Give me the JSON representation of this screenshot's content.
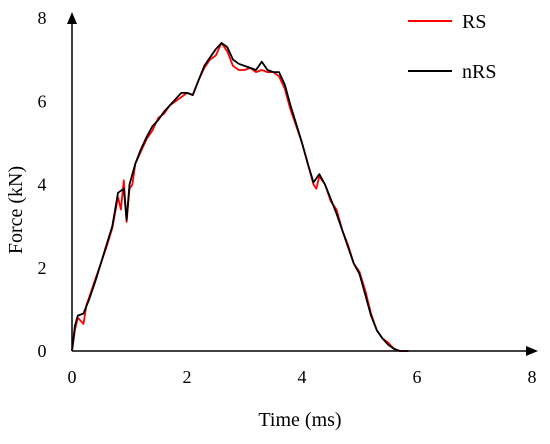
{
  "chart_data": {
    "type": "line",
    "title": "",
    "xlabel": "Time (ms)",
    "ylabel": "Force (kN)",
    "xlim": [
      0,
      8
    ],
    "ylim": [
      0,
      8
    ],
    "x_ticks": [
      "0",
      "2",
      "4",
      "6",
      "8"
    ],
    "y_ticks": [
      "0",
      "2",
      "4",
      "6",
      "8"
    ],
    "grid": false,
    "legend_position": "top-right",
    "series": [
      {
        "name": "RS",
        "color": "#ff0000",
        "x": [
          0,
          0.05,
          0.1,
          0.2,
          0.25,
          0.3,
          0.4,
          0.5,
          0.6,
          0.7,
          0.8,
          0.85,
          0.9,
          0.95,
          1.0,
          1.05,
          1.1,
          1.2,
          1.3,
          1.4,
          1.5,
          1.6,
          1.7,
          1.8,
          1.9,
          2.0,
          2.1,
          2.2,
          2.3,
          2.4,
          2.5,
          2.6,
          2.7,
          2.8,
          2.9,
          3.0,
          3.1,
          3.2,
          3.3,
          3.4,
          3.5,
          3.6,
          3.7,
          3.8,
          3.9,
          4.0,
          4.1,
          4.2,
          4.25,
          4.3,
          4.4,
          4.5,
          4.6,
          4.7,
          4.8,
          4.9,
          5.0,
          5.1,
          5.2,
          5.3,
          5.4,
          5.5,
          5.6,
          5.7,
          5.8,
          5.85
        ],
        "y": [
          0,
          0.5,
          0.8,
          0.65,
          1.1,
          1.3,
          1.7,
          2.1,
          2.5,
          2.95,
          3.7,
          3.4,
          4.1,
          3.1,
          3.9,
          4.0,
          4.5,
          4.8,
          5.1,
          5.3,
          5.6,
          5.7,
          5.9,
          6.0,
          6.1,
          6.2,
          6.15,
          6.5,
          6.8,
          7.0,
          7.1,
          7.4,
          7.2,
          6.85,
          6.75,
          6.75,
          6.8,
          6.7,
          6.75,
          6.7,
          6.7,
          6.6,
          6.3,
          5.8,
          5.4,
          5.0,
          4.5,
          4.0,
          3.9,
          4.2,
          4.0,
          3.6,
          3.4,
          2.9,
          2.55,
          2.1,
          1.9,
          1.45,
          0.9,
          0.5,
          0.3,
          0.2,
          0.05,
          0.0,
          0,
          0
        ]
      },
      {
        "name": "nRS",
        "color": "#000000",
        "x": [
          0,
          0.05,
          0.1,
          0.2,
          0.3,
          0.4,
          0.5,
          0.6,
          0.7,
          0.8,
          0.9,
          0.95,
          1.0,
          1.1,
          1.2,
          1.3,
          1.4,
          1.5,
          1.6,
          1.7,
          1.8,
          1.9,
          2.0,
          2.1,
          2.2,
          2.3,
          2.4,
          2.5,
          2.6,
          2.7,
          2.8,
          2.9,
          3.0,
          3.1,
          3.2,
          3.3,
          3.4,
          3.5,
          3.6,
          3.7,
          3.8,
          3.9,
          4.0,
          4.1,
          4.2,
          4.3,
          4.4,
          4.5,
          4.6,
          4.7,
          4.8,
          4.9,
          5.0,
          5.1,
          5.2,
          5.3,
          5.4,
          5.5,
          5.6,
          5.7,
          5.8,
          5.85
        ],
        "y": [
          0,
          0.6,
          0.85,
          0.9,
          1.25,
          1.65,
          2.1,
          2.55,
          3.0,
          3.8,
          3.9,
          3.15,
          4.0,
          4.5,
          4.85,
          5.15,
          5.4,
          5.55,
          5.75,
          5.9,
          6.05,
          6.2,
          6.2,
          6.15,
          6.5,
          6.85,
          7.05,
          7.25,
          7.4,
          7.3,
          7.0,
          6.9,
          6.85,
          6.8,
          6.75,
          6.95,
          6.75,
          6.7,
          6.7,
          6.4,
          5.9,
          5.45,
          5.0,
          4.5,
          4.05,
          4.25,
          4.0,
          3.65,
          3.3,
          2.9,
          2.5,
          2.1,
          1.85,
          1.35,
          0.85,
          0.5,
          0.3,
          0.15,
          0.05,
          0.0,
          0,
          0
        ]
      }
    ]
  }
}
